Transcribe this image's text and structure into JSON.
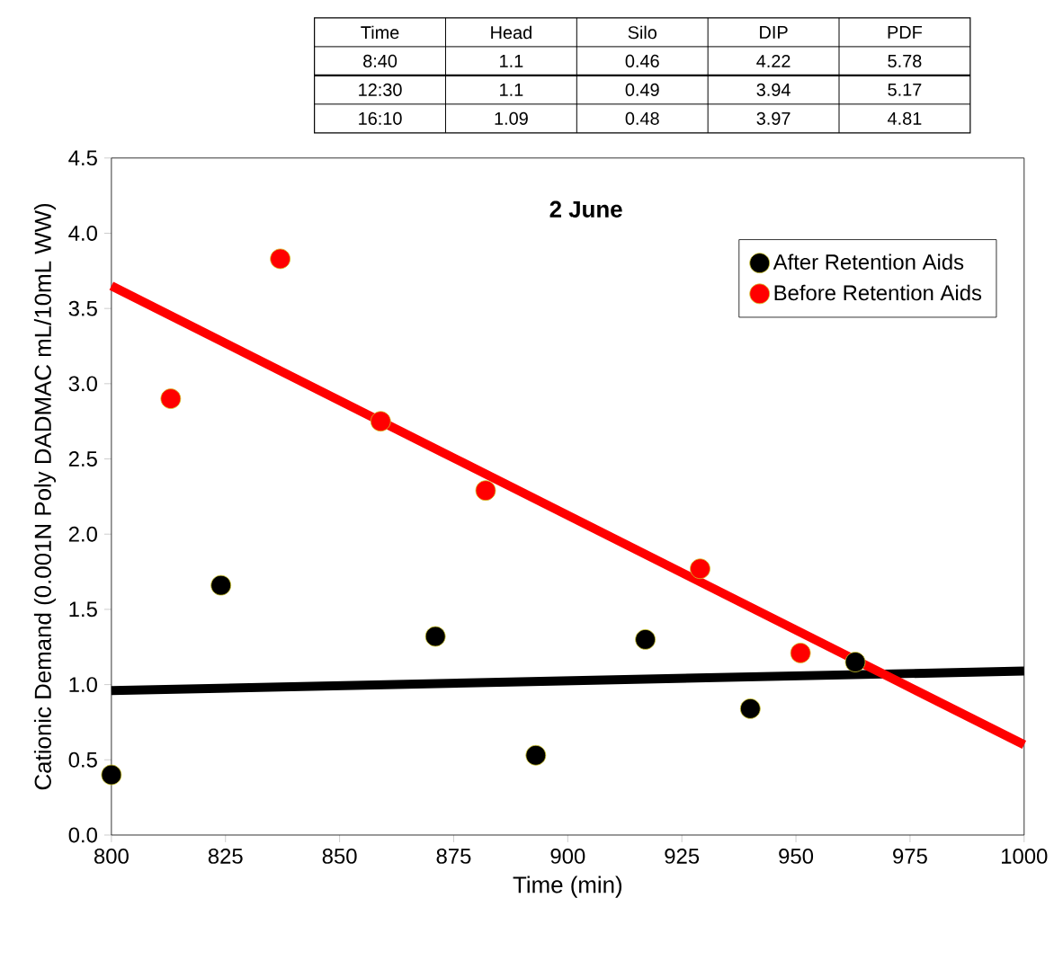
{
  "chart_data": {
    "type": "scatter",
    "title": "2 June",
    "xlabel": "Time (min)",
    "ylabel": "Cationic Demand (0.001N Poly DADMAC mL/10mL WW)",
    "xlim": [
      800,
      1000
    ],
    "xticks": [
      800,
      825,
      850,
      875,
      900,
      925,
      950,
      975,
      1000
    ],
    "ylim": [
      0,
      4.5
    ],
    "yticks": [
      {
        "value": 0,
        "label": "0.0"
      },
      {
        "value": 0.5,
        "label": "0.5"
      },
      {
        "value": 1,
        "label": "1.0"
      },
      {
        "value": 1.5,
        "label": "1.5"
      },
      {
        "value": 2,
        "label": "2.0"
      },
      {
        "value": 2.5,
        "label": "2.5"
      },
      {
        "value": 3,
        "label": "3.0"
      },
      {
        "value": 3.5,
        "label": "3.5"
      },
      {
        "value": 4,
        "label": "4.0"
      },
      {
        "value": 4.5,
        "label": "4.5"
      }
    ],
    "legend": "top right",
    "series": [
      {
        "name": "After Retention Aids",
        "marker": "circle",
        "color": "#000000",
        "x": [
          800,
          824,
          871,
          893,
          917,
          940,
          963
        ],
        "values": [
          0.4,
          1.66,
          1.32,
          0.53,
          1.3,
          0.84,
          1.15
        ]
      },
      {
        "name": "Before Retention Aids",
        "marker": "circle",
        "color": "#ff0000",
        "x": [
          813,
          837,
          859,
          882,
          929,
          951
        ],
        "values": [
          2.9,
          3.83,
          2.75,
          2.29,
          1.77,
          1.21
        ]
      },
      {
        "type": "line",
        "marker": "none",
        "color": "#000000",
        "x": [
          800,
          1000
        ],
        "values": [
          0.96,
          1.09
        ]
      },
      {
        "type": "line",
        "marker": "none",
        "color": "#ff0000",
        "x": [
          800,
          1000
        ],
        "values": [
          3.65,
          0.6
        ]
      }
    ],
    "annotations": [
      "Time",
      "Head",
      "Silo",
      "DIP",
      "PDF",
      "8:40",
      "1.1",
      "0.46",
      "4.22",
      "5.78",
      "12:30",
      "1.1",
      "0.49",
      "3.94",
      "5.17",
      "16:10",
      "1.09",
      "0.48",
      "3.97",
      "4.81"
    ]
  }
}
